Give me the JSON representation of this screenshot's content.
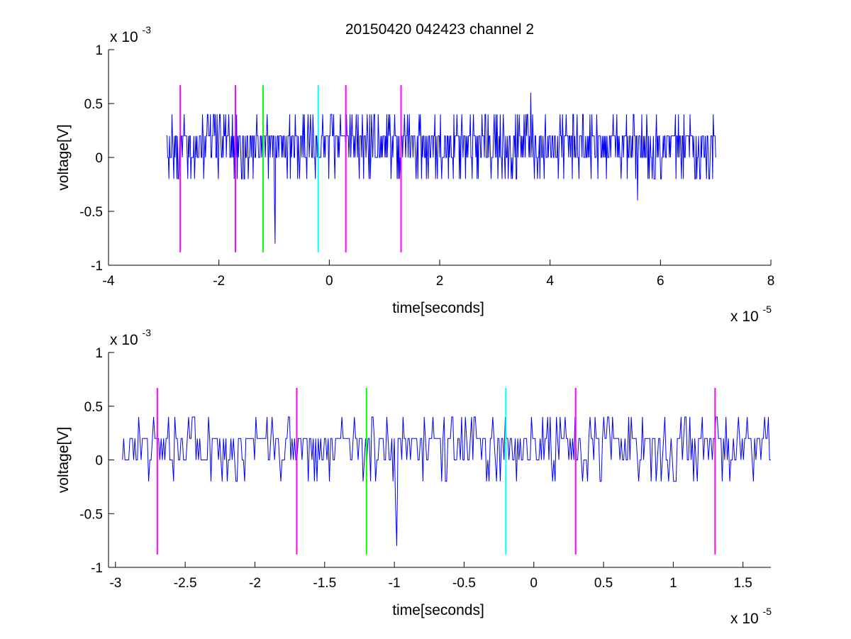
{
  "title": "20150420 042423 channel 2",
  "colors": {
    "signal": "#0000ff",
    "marker_magenta": "#ff00ff",
    "marker_green": "#00ff00",
    "marker_cyan": "#00ffff"
  },
  "chart_data": [
    {
      "type": "line",
      "panel": "top",
      "title": "20150420 042423 channel 2",
      "xlabel": "time[seconds]",
      "ylabel": "voltage[V]",
      "x_multiplier": "x 10",
      "x_exponent": "-5",
      "y_multiplier": "x 10",
      "y_exponent": "-3",
      "xlim": [
        -4,
        8
      ],
      "ylim": [
        -1,
        1
      ],
      "xticks": [
        -4,
        -2,
        0,
        2,
        4,
        6,
        8
      ],
      "xtick_labels": [
        "-4",
        "-2",
        "0",
        "2",
        "4",
        "6",
        "8"
      ],
      "yticks": [
        1,
        0.5,
        0,
        -0.5,
        -1
      ],
      "ytick_labels": [
        "1",
        "0.5",
        "0",
        "-0.5",
        "-1"
      ],
      "grid": false,
      "signal": {
        "x_start": -2.95,
        "x_end": 7.0,
        "levels": [
          0,
          0.2
        ],
        "noise_range": [
          -0.8,
          0.6
        ]
      },
      "markers": [
        {
          "x": -2.7,
          "color": "magenta",
          "ymin": -0.88,
          "ymax": 0.67
        },
        {
          "x": -1.7,
          "color": "magenta",
          "ymin": -0.88,
          "ymax": 0.67
        },
        {
          "x": -1.2,
          "color": "green",
          "ymin": -0.88,
          "ymax": 0.67
        },
        {
          "x": -0.2,
          "color": "cyan",
          "ymin": -0.88,
          "ymax": 0.67
        },
        {
          "x": 0.3,
          "color": "magenta",
          "ymin": -0.88,
          "ymax": 0.67
        },
        {
          "x": 1.3,
          "color": "magenta",
          "ymin": -0.88,
          "ymax": 0.67
        }
      ]
    },
    {
      "type": "line",
      "panel": "bottom",
      "xlabel": "time[seconds]",
      "ylabel": "voltage[V]",
      "x_multiplier": "x 10",
      "x_exponent": "-5",
      "y_multiplier": "x 10",
      "y_exponent": "-3",
      "xlim": [
        -3.05,
        1.7
      ],
      "ylim": [
        -1,
        1
      ],
      "xticks": [
        -3,
        -2.5,
        -2,
        -1.5,
        -1,
        -0.5,
        0,
        0.5,
        1,
        1.5
      ],
      "xtick_labels": [
        "-3",
        "-2.5",
        "-2",
        "-1.5",
        "-1",
        "-0.5",
        "0",
        "0.5",
        "1",
        "1.5"
      ],
      "yticks": [
        1,
        0.5,
        0,
        -0.5,
        -1
      ],
      "ytick_labels": [
        "1",
        "0.5",
        "0",
        "-0.5",
        "-1"
      ],
      "grid": false,
      "signal": {
        "x_start": -2.95,
        "x_end": 1.7,
        "levels": [
          0,
          0.2
        ],
        "noise_range": [
          -0.8,
          0.4
        ]
      },
      "markers": [
        {
          "x": -2.7,
          "color": "magenta",
          "ymin": -0.88,
          "ymax": 0.67
        },
        {
          "x": -1.7,
          "color": "magenta",
          "ymin": -0.88,
          "ymax": 0.67
        },
        {
          "x": -1.2,
          "color": "green",
          "ymin": -0.88,
          "ymax": 0.67
        },
        {
          "x": -0.2,
          "color": "cyan",
          "ymin": -0.88,
          "ymax": 0.67
        },
        {
          "x": 0.3,
          "color": "magenta",
          "ymin": -0.88,
          "ymax": 0.67
        },
        {
          "x": 1.3,
          "color": "magenta",
          "ymin": -0.88,
          "ymax": 0.67
        }
      ]
    }
  ]
}
